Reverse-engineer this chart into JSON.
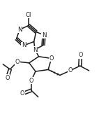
{
  "bg_color": "#ffffff",
  "line_color": "#1a1a1a",
  "line_width": 1.1,
  "font_size": 6.2,
  "figsize": [
    1.52,
    1.7
  ],
  "dpi": 100,
  "xlim": [
    0,
    1
  ],
  "ylim": [
    0,
    1
  ]
}
